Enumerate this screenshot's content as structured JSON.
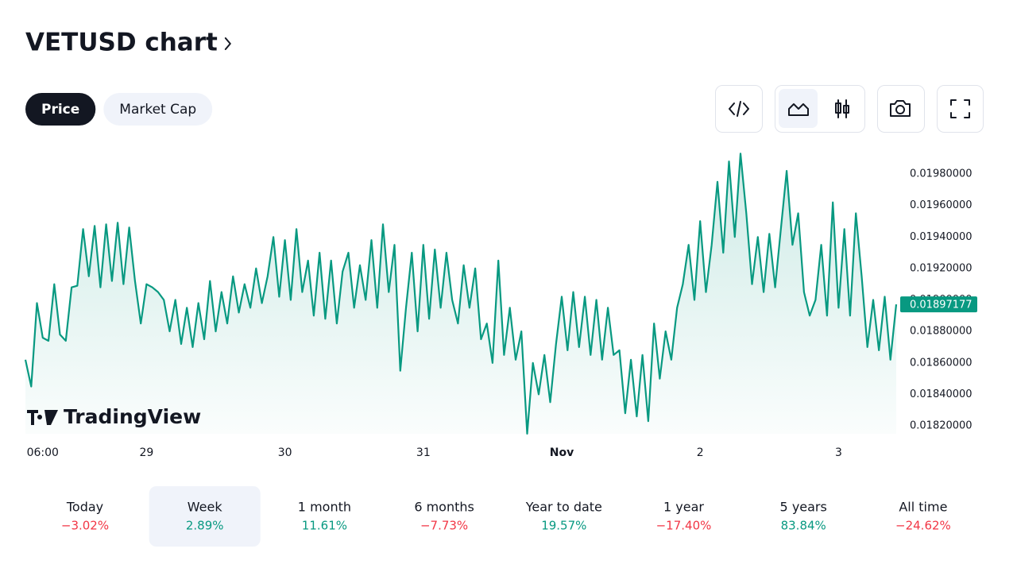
{
  "header": {
    "title": "VETUSD chart",
    "tabs": [
      "Price",
      "Market Cap"
    ],
    "active_tab": 0
  },
  "chart_data": {
    "type": "line",
    "color": "#089981",
    "categories": [
      null,
      null,
      null,
      "06:00",
      null,
      null,
      null,
      null,
      null,
      null,
      null,
      null,
      null,
      null,
      null,
      null,
      null,
      null,
      null,
      null,
      null,
      "29",
      null,
      null,
      null,
      null,
      null,
      null,
      null,
      null,
      null,
      null,
      null,
      null,
      null,
      null,
      null,
      null,
      null,
      null,
      null,
      null,
      null,
      null,
      null,
      "30",
      null,
      null,
      null,
      null,
      null,
      null,
      null,
      null,
      null,
      null,
      null,
      null,
      null,
      null,
      null,
      null,
      null,
      null,
      null,
      null,
      null,
      null,
      null,
      "31",
      null,
      null,
      null,
      null,
      null,
      null,
      null,
      null,
      null,
      null,
      null,
      null,
      null,
      null,
      null,
      null,
      null,
      null,
      null,
      null,
      null,
      null,
      null,
      "Nov",
      null,
      null,
      null,
      null,
      null,
      null,
      null,
      null,
      null,
      null,
      null,
      null,
      null,
      null,
      null,
      null,
      null,
      null,
      null,
      null,
      null,
      null,
      null,
      "2",
      null,
      null,
      null,
      null,
      null,
      null,
      null,
      null,
      null,
      null,
      null,
      null,
      null,
      null,
      null,
      null,
      null,
      null,
      null,
      null,
      null,
      null,
      null,
      "3",
      null,
      null,
      null,
      null,
      null,
      null,
      null,
      null,
      null,
      null
    ],
    "values": [
      0.01862,
      0.01845,
      0.01898,
      0.01876,
      0.01874,
      0.0191,
      0.01878,
      0.01874,
      0.01908,
      0.01909,
      0.01945,
      0.01915,
      0.01947,
      0.01908,
      0.01948,
      0.01912,
      0.01949,
      0.0191,
      0.01946,
      0.01912,
      0.01885,
      0.0191,
      0.01908,
      0.01905,
      0.019,
      0.0188,
      0.019,
      0.01872,
      0.01895,
      0.0187,
      0.01898,
      0.01875,
      0.01912,
      0.0188,
      0.01905,
      0.01885,
      0.01915,
      0.01892,
      0.0191,
      0.01895,
      0.0192,
      0.01898,
      0.01915,
      0.0194,
      0.01902,
      0.01938,
      0.019,
      0.01945,
      0.01905,
      0.01925,
      0.0189,
      0.0193,
      0.01888,
      0.01925,
      0.01885,
      0.01918,
      0.0193,
      0.01895,
      0.01922,
      0.019,
      0.01938,
      0.01895,
      0.01948,
      0.01905,
      0.01935,
      0.01855,
      0.01895,
      0.0193,
      0.0188,
      0.01935,
      0.01888,
      0.01932,
      0.01895,
      0.0193,
      0.019,
      0.01885,
      0.01922,
      0.01895,
      0.0192,
      0.01875,
      0.01885,
      0.0186,
      0.01925,
      0.01865,
      0.01895,
      0.01862,
      0.0188,
      0.01815,
      0.0186,
      0.0184,
      0.01865,
      0.01835,
      0.01872,
      0.01902,
      0.01868,
      0.01905,
      0.0187,
      0.01902,
      0.01865,
      0.019,
      0.01862,
      0.01895,
      0.01865,
      0.01868,
      0.01828,
      0.01862,
      0.01826,
      0.01865,
      0.01823,
      0.01885,
      0.0185,
      0.0188,
      0.01862,
      0.01895,
      0.0191,
      0.01935,
      0.019,
      0.0195,
      0.01905,
      0.01935,
      0.01975,
      0.0193,
      0.01988,
      0.0194,
      0.01993,
      0.01955,
      0.0191,
      0.0194,
      0.01905,
      0.01942,
      0.01908,
      0.01945,
      0.01982,
      0.01935,
      0.01955,
      0.01905,
      0.0189,
      0.019,
      0.01935,
      0.0189,
      0.01962,
      0.01895,
      0.01945,
      0.0189,
      0.01955,
      0.01915,
      0.0187,
      0.019,
      0.01868,
      0.01902,
      0.01862,
      0.01897177
    ],
    "ylim": [
      0.01815,
      0.01995
    ],
    "yticks": [
      {
        "value": 0.0182,
        "label": "0.01820000"
      },
      {
        "value": 0.0184,
        "label": "0.01840000"
      },
      {
        "value": 0.0186,
        "label": "0.01860000"
      },
      {
        "value": 0.0188,
        "label": "0.01880000"
      },
      {
        "value": 0.019,
        "label": "0.01900000"
      },
      {
        "value": 0.0192,
        "label": "0.01920000"
      },
      {
        "value": 0.0194,
        "label": "0.01940000"
      },
      {
        "value": 0.0196,
        "label": "0.01960000"
      },
      {
        "value": 0.0198,
        "label": "0.01980000"
      }
    ]
  },
  "watermark": "TradingView",
  "periods": [
    {
      "label": "Today",
      "change": "−3.02%"
    },
    {
      "label": "Week",
      "change": "2.89%"
    },
    {
      "label": "1 month",
      "change": "11.61%"
    },
    {
      "label": "6 months",
      "change": "−7.73%"
    },
    {
      "label": "Year to date",
      "change": "19.57%"
    },
    {
      "label": "1 year",
      "change": "−17.40%"
    },
    {
      "label": "5 years",
      "change": "83.84%"
    },
    {
      "label": "All time",
      "change": "−24.62%"
    }
  ],
  "selected_period": 1
}
